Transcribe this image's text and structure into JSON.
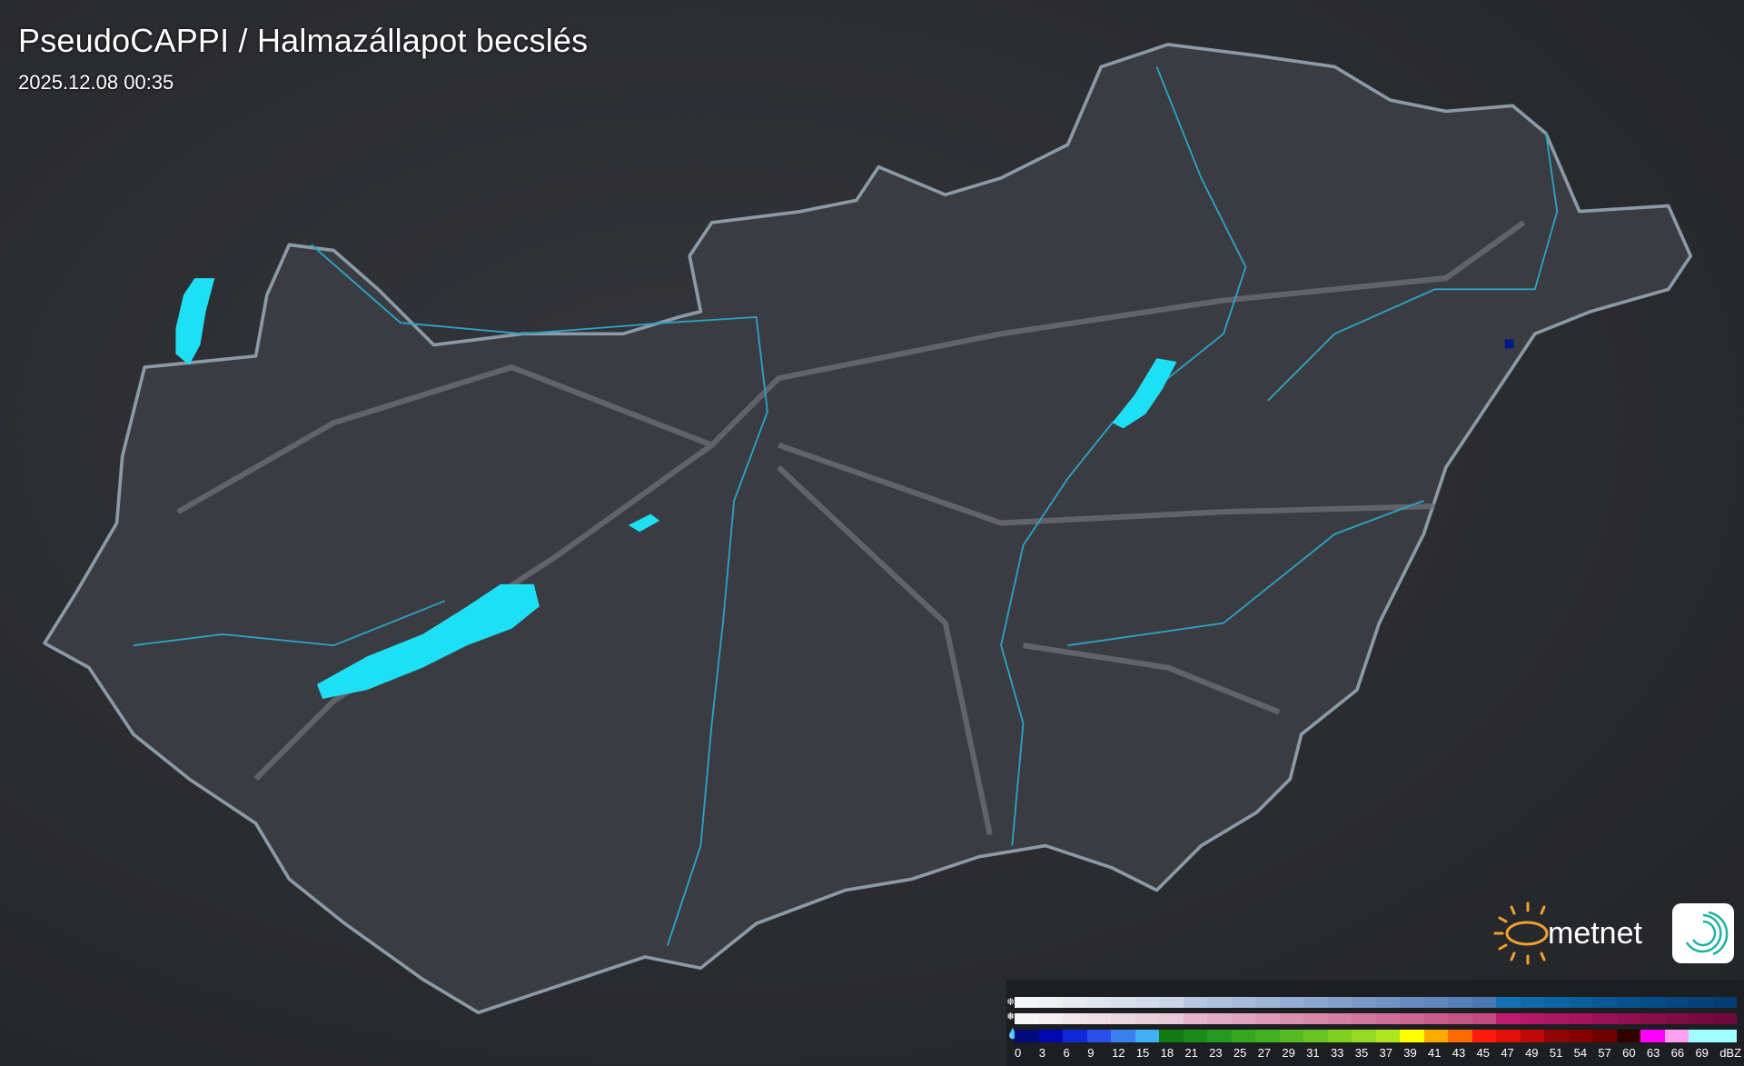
{
  "header": {
    "title": "PseudoCAPPI  / Halmazállapot becslés",
    "timestamp": "2025.12.08 00:35"
  },
  "map": {
    "country_fill": "#3b3c41",
    "border_color": "#8a9aa6",
    "river_color": "#2aa3c8",
    "lake_color": "#1ee0f5",
    "echo": {
      "color": "#00188a"
    }
  },
  "legend": {
    "snow_icon": "snowflake-icon",
    "mixed_icon": "sleet-icon",
    "rain_icon": "raindrop-icon",
    "snow_colors": [
      "#f4f5f7",
      "#eef0f4",
      "#e6eaf1",
      "#dfe5ee",
      "#d9e1ec",
      "#d3dcea",
      "#cbd6e7",
      "#b6c7df",
      "#aec1dc",
      "#a6bbd9",
      "#9db4d5",
      "#94add2",
      "#8ca7ce",
      "#83a0cb",
      "#7a99c7",
      "#7193c4",
      "#688cc0",
      "#5f86bd",
      "#5680ba",
      "#4a78b5",
      "#1472b4",
      "#116aaa",
      "#0e64a3",
      "#0b5e9c",
      "#095895",
      "#07528e",
      "#064d87",
      "#054780",
      "#04427a",
      "#033d74"
    ],
    "mixed_colors": [
      "#f5f5f5",
      "#f3eef0",
      "#f0e6ea",
      "#eedfe5",
      "#ebd8df",
      "#e9d1da",
      "#e6cad5",
      "#e5b6c8",
      "#e2adc2",
      "#e0a4bc",
      "#dd9bb6",
      "#da92b0",
      "#d889aa",
      "#d580a4",
      "#d2779e",
      "#cf6e98",
      "#cc6592",
      "#c95c8c",
      "#c65386",
      "#c34a80",
      "#be1a6e",
      "#b51868",
      "#ac1662",
      "#a3145c",
      "#9a1256",
      "#911050",
      "#880e4a",
      "#800c45",
      "#780a40",
      "#70083b"
    ],
    "rain_colors": [
      "#000a7a",
      "#0008b0",
      "#1028d8",
      "#2a50ec",
      "#3a80f0",
      "#40b0f8",
      "#127a10",
      "#1a8a18",
      "#259a20",
      "#35a820",
      "#45b020",
      "#55bb20",
      "#68c620",
      "#80d020",
      "#95da20",
      "#aee620",
      "#ffff00",
      "#ffaa00",
      "#ff6a00",
      "#ff1a10",
      "#e01008",
      "#c00806",
      "#900404",
      "#880000",
      "#700000",
      "#300000",
      "#ff00ff",
      "#ffa0f0",
      "#a0ffff",
      "#a0ffff"
    ],
    "labels": [
      "0",
      "3",
      "6",
      "9",
      "12",
      "15",
      "18",
      "21",
      "23",
      "25",
      "27",
      "29",
      "31",
      "33",
      "35",
      "37",
      "39",
      "41",
      "43",
      "45",
      "47",
      "49",
      "51",
      "54",
      "57",
      "60",
      "63",
      "66",
      "69",
      "dBZ"
    ]
  },
  "logo": {
    "text": "metnet",
    "sun_color": "#f0a030"
  }
}
